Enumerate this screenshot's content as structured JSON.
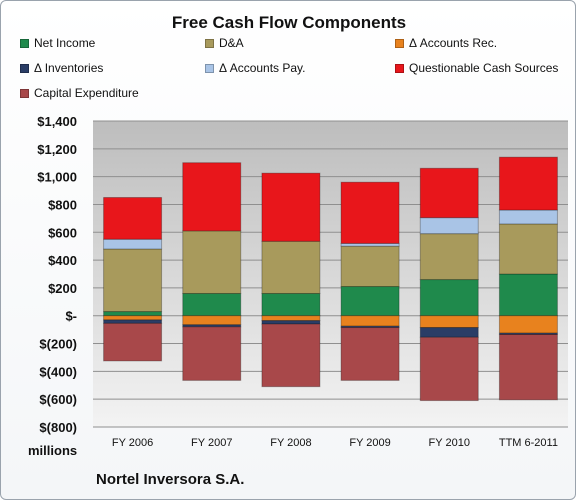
{
  "chart_data": {
    "type": "bar",
    "stacked": true,
    "title": "Free Cash Flow Components",
    "unit_label": "millions",
    "footer": "Nortel Inversora S.A.",
    "categories": [
      "FY 2006",
      "FY 2007",
      "FY 2008",
      "FY 2009",
      "FY 2010",
      "TTM 6-2011"
    ],
    "ylim": [
      -800,
      1400
    ],
    "yticks": [
      -800,
      -600,
      -400,
      -200,
      0,
      200,
      400,
      600,
      800,
      1000,
      1200,
      1400
    ],
    "ytick_labels": [
      "$(800)",
      "$(600)",
      "$(400)",
      "$(200)",
      "$-",
      "$200",
      "$400",
      "$600",
      "$800",
      "$1,000",
      "$1,200",
      "$1,400"
    ],
    "grid": true,
    "legend_position": "top",
    "series": [
      {
        "name": "Net Income",
        "color": "#1f8a4c",
        "values": [
          30,
          160,
          160,
          210,
          260,
          300
        ]
      },
      {
        "name": "D&A",
        "color": "#a89a5c",
        "values": [
          450,
          450,
          375,
          290,
          330,
          360
        ]
      },
      {
        "name": "Δ Accounts Rec.",
        "color": "#e8821e",
        "values": [
          -30,
          -65,
          -35,
          -75,
          -85,
          -125
        ]
      },
      {
        "name": "Δ Inventories",
        "color": "#2a3d66",
        "values": [
          -25,
          -15,
          -25,
          -10,
          -70,
          -10
        ]
      },
      {
        "name": "Δ Accounts Pay.",
        "color": "#a9c4e6",
        "values": [
          70,
          0,
          0,
          20,
          115,
          100
        ]
      },
      {
        "name": "Questionable Cash Sources",
        "color": "#e8161b",
        "values": [
          300,
          490,
          490,
          440,
          355,
          380
        ]
      },
      {
        "name": "Capital Expenditure",
        "color": "#a8484a",
        "values": [
          -270,
          -385,
          -450,
          -380,
          -455,
          -470
        ]
      }
    ]
  }
}
